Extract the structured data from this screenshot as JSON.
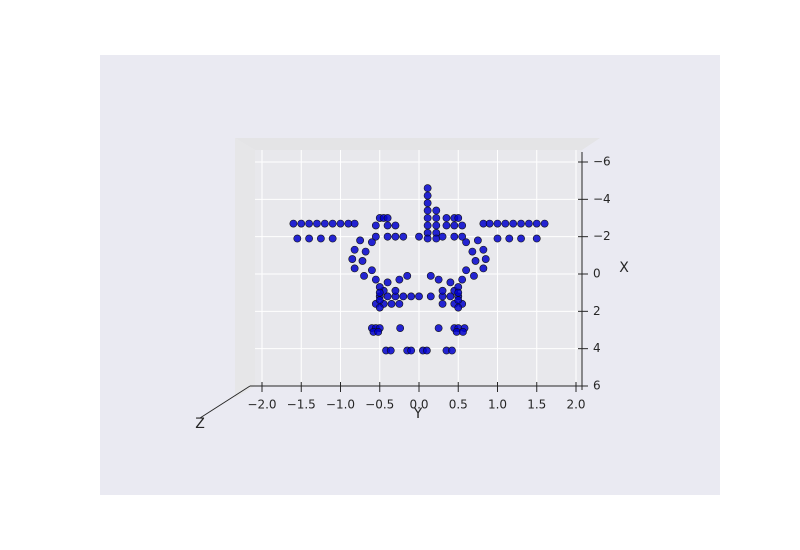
{
  "chart_data": {
    "type": "scatter",
    "xlabel": "Y",
    "ylabel": "X",
    "zlabel": "Z",
    "xlim": [
      -2,
      2
    ],
    "ylim": [
      -6,
      6
    ],
    "y_inverted": true,
    "grid": true,
    "color": "#0000cc",
    "xticks": [
      {
        "value": -2,
        "label": "−2.0"
      },
      {
        "value": -1.5,
        "label": "−1.5"
      },
      {
        "value": -1,
        "label": "−1.0"
      },
      {
        "value": -0.5,
        "label": "−0.5"
      },
      {
        "value": 0,
        "label": "0.0"
      },
      {
        "value": 0.5,
        "label": "0.5"
      },
      {
        "value": 1,
        "label": "1.0"
      },
      {
        "value": 1.5,
        "label": "1.5"
      },
      {
        "value": 2,
        "label": "2.0"
      }
    ],
    "yticks": [
      {
        "value": -6,
        "label": "−6"
      },
      {
        "value": -4,
        "label": "−4"
      },
      {
        "value": -2,
        "label": "−2"
      },
      0,
      2,
      4,
      6
    ],
    "x": [
      -1.6,
      -1.5,
      -1.4,
      -1.3,
      -1.2,
      -1.1,
      -1.0,
      -0.9,
      -0.82,
      0.82,
      0.9,
      1.0,
      1.1,
      1.2,
      1.3,
      1.4,
      1.5,
      1.6,
      -1.55,
      -1.4,
      -1.25,
      -1.1,
      1.0,
      1.15,
      1.3,
      1.5,
      0.11,
      0.11,
      0.11,
      0.11,
      0.11,
      0.11,
      0.11,
      0.11,
      0.22,
      0.22,
      0.22,
      0.22,
      0.22,
      -0.5,
      -0.45,
      -0.4,
      0.35,
      0.45,
      0.5,
      -0.55,
      -0.4,
      -0.3,
      0.35,
      0.45,
      0.55,
      -0.55,
      -0.4,
      -0.3,
      -0.2,
      0.0,
      0.3,
      0.45,
      0.55,
      -0.75,
      -0.82,
      -0.85,
      -0.82,
      -0.7,
      -0.55,
      -0.4,
      -0.25,
      -0.15,
      0.75,
      0.82,
      0.85,
      0.82,
      0.7,
      0.55,
      0.4,
      0.25,
      0.15,
      -0.6,
      -0.68,
      -0.72,
      -0.6,
      0.6,
      0.68,
      0.72,
      0.6,
      -0.5,
      -0.4,
      -0.3,
      -0.2,
      -0.1,
      0.0,
      0.15,
      0.3,
      0.4,
      0.5,
      -0.55,
      -0.45,
      -0.35,
      -0.25,
      0.3,
      0.45,
      0.55,
      -0.45,
      -0.3,
      0.3,
      0.45,
      -0.5,
      -0.5,
      -0.5,
      -0.5,
      0.5,
      0.5,
      0.5,
      0.5,
      -0.6,
      -0.55,
      -0.5,
      -0.24,
      0.25,
      0.45,
      0.5,
      0.58,
      -0.58,
      -0.52,
      0.48,
      0.56,
      -0.42,
      -0.36,
      -0.15,
      -0.1,
      0.05,
      0.1,
      0.35,
      0.42
    ],
    "values": [
      -2.7,
      -2.7,
      -2.7,
      -2.7,
      -2.7,
      -2.7,
      -2.7,
      -2.7,
      -2.7,
      -2.7,
      -2.7,
      -2.7,
      -2.7,
      -2.7,
      -2.7,
      -2.7,
      -2.7,
      -2.7,
      -1.9,
      -1.9,
      -1.9,
      -1.9,
      -1.9,
      -1.9,
      -1.9,
      -1.9,
      -4.6,
      -4.2,
      -3.8,
      -3.4,
      -3.0,
      -2.6,
      -2.2,
      -1.9,
      -3.4,
      -3.0,
      -2.6,
      -2.2,
      -1.9,
      -3.0,
      -3.0,
      -3.0,
      -3.0,
      -3.0,
      -3.0,
      -2.6,
      -2.6,
      -2.6,
      -2.6,
      -2.6,
      -2.6,
      -2.0,
      -2.0,
      -2.0,
      -2.0,
      -2.0,
      -2.0,
      -2.0,
      -2.0,
      -1.8,
      -1.3,
      -0.8,
      -0.3,
      0.1,
      0.3,
      0.45,
      0.3,
      0.1,
      -1.8,
      -1.3,
      -0.8,
      -0.3,
      0.1,
      0.3,
      0.45,
      0.3,
      0.1,
      -1.7,
      -1.2,
      -0.7,
      -0.2,
      -1.7,
      -1.2,
      -0.7,
      -0.2,
      1.2,
      1.2,
      1.2,
      1.2,
      1.2,
      1.2,
      1.2,
      1.2,
      1.2,
      1.2,
      1.6,
      1.6,
      1.6,
      1.6,
      1.6,
      1.6,
      1.6,
      0.9,
      0.9,
      0.9,
      0.9,
      0.7,
      1.0,
      1.4,
      1.8,
      0.7,
      1.0,
      1.4,
      1.8,
      2.9,
      2.9,
      2.9,
      2.9,
      2.9,
      2.9,
      2.9,
      2.9,
      3.1,
      3.1,
      3.1,
      3.1,
      4.1,
      4.1,
      4.1,
      4.1,
      4.1,
      4.1,
      4.1,
      4.1
    ]
  }
}
